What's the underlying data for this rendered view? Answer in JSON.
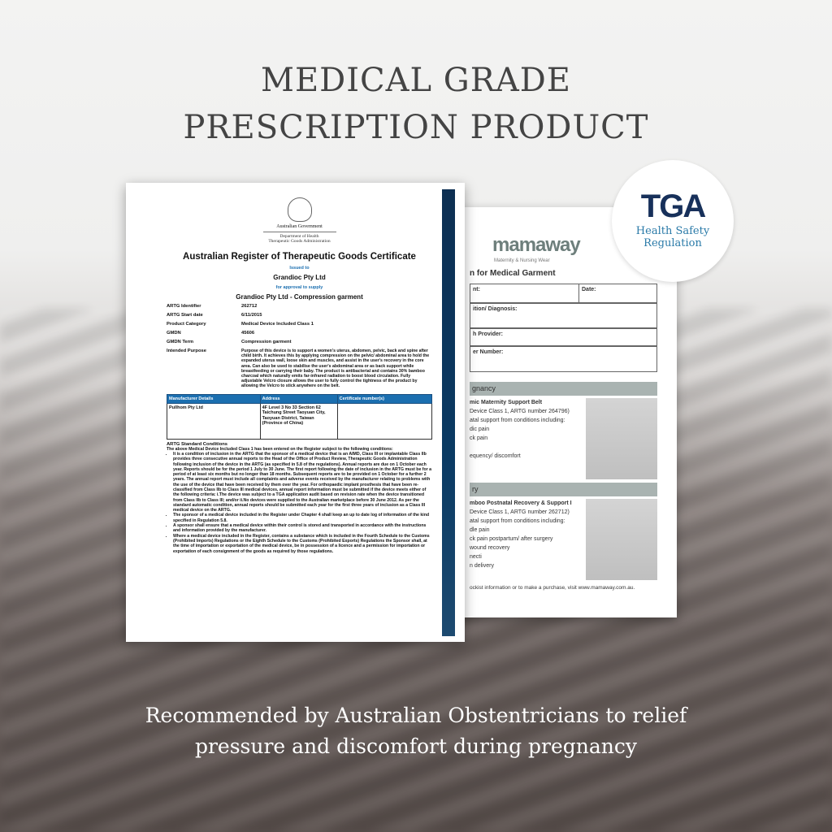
{
  "headline": {
    "line1": "MEDICAL GRADE",
    "line2": "PRESCRIPTION PRODUCT"
  },
  "tagline": {
    "line1": "Recommended by Australian Obstentricians to relief",
    "line2": "pressure and discomfort during pregnancy"
  },
  "tga_badge": {
    "logo": "TGA",
    "line1": "Health Safety",
    "line2": "Regulation"
  },
  "certificate": {
    "gov": "Australian Government",
    "dept": "Department of Health",
    "agency": "Therapeutic Goods Administration",
    "title": "Australian Register of Therapeutic Goods Certificate",
    "issued_to_label": "Issued to",
    "issued_to": "Grandioc Pty Ltd",
    "approval_label": "for approval to supply",
    "product": "Grandioc Pty Ltd - Compression garment",
    "fields": [
      {
        "k": "ARTG Identifier",
        "v": "262712"
      },
      {
        "k": "ARTG Start date",
        "v": "6/11/2015"
      },
      {
        "k": "Product Category",
        "v": "Medical Device Included Class 1"
      },
      {
        "k": "GMDN",
        "v": "45606"
      },
      {
        "k": "GMDN Term",
        "v": "Compression garment"
      },
      {
        "k": "Intended Purpose",
        "v": "Purpose of this device is to support a women's uterus, abdomen, pelvic, back and spine after child birth. It achieves this by applying compression on the pelvic/ abdominal area to hold the expanded uterus wall, loose skin and muscles, and assist in the user's recovery in the core area. Can also be used to stabilise the user's abdominal area or as back support while breastfeeding or carrying their baby. The product is antibacterial and contains 30% bamboo charcoal which naturally emits far-infrared radiation to boost blood circulation. Fully adjustable Velcro closure allows the user to fully control the tightness of the product by allowing the Velcro to stick anywhere on the belt."
      }
    ],
    "table": {
      "headers": [
        "Manufacturer Details",
        "Address",
        "Certificate number(s)"
      ],
      "manufacturer": "Pullhom Pty Ltd",
      "address": "4F Level 3 No 33 Section 62 Taichung Street Taoyuan City, Taoyuan District, Taiwan (Province of China)",
      "cert_no": ""
    },
    "conditions_title": "ARTG Standard Conditions",
    "conditions_intro": "The above Medical Device Included Class 1 has been entered on the Register subject to the following conditions:",
    "conditions": [
      "It is a condition of inclusion in the ARTG that the sponsor of a medical device that is an AIMD, Class III or implantable Class IIb provides three consecutive annual reports to the Head of the Office of Product Review, Therapeutic Goods Administration following inclusion of the device in the ARTG (as specified in 5.8 of the regulations). Annual reports are due on 1 October each year. Reports should be for the period 1 July to 30 June. The first report following the date of inclusion in the ARTG must be for a period of at least six months but no longer than 18 months. Subsequent reports are to be provided on 1 October for a further 2 years. The annual report must include all complaints and adverse events received by the manufacturer relating to problems with the use of the device that have been received by them over the year. For orthopaedic implant prosthesis that have been re-classified from Class IIb to Class III medical devices, annual report information must be submitted if the device meets either of the following criteria: i.The device was subject to a TGA application audit based on revision rate when the device transitioned from Class IIb to Class III; and/or ii.No devices were supplied to the Australian marketplace before 30 June 2012. As per the standard automatic condition, annual reports should be submitted each year for the first three years of inclusion as a Class III medical device on the ARTG.",
      "The sponsor of a medical device included in the Register under Chapter 4 shall keep an up to date log of information of the kind specified in Regulation 5.8.",
      "A sponsor shall ensure that a medical device within their control is stored and transported in accordance with the instructions and information provided by the manufacturer.",
      "Where a medical device included in the Register, contains a substance which is included in the Fourth Schedule to the Customs (Prohibited Imports) Regulations or the Eighth Schedule to the Customs (Prohibited Exports) Regulations the Sponsor shall, at the time of importation or exportation of the medical device, be in possession of a licence and a permission for importation or exportation of each consignment of the goods as required by those regulations."
    ]
  },
  "form": {
    "logo": "mamaway",
    "logo_sub": "Maternity & Nursing Wear",
    "title": "n for Medical Garment",
    "fields": {
      "patient": "nt:",
      "date": "Date:",
      "diagnosis": "ition/ Diagnosis:",
      "provider": "h Provider:",
      "number": "er Number:"
    },
    "section1": "gnancy",
    "p1_name": "mic Maternity Support Belt",
    "p1_class": "Device Class 1, ARTG number 264796)",
    "p1_lines": [
      "atal support from conditions including:",
      "dic pain",
      "ck pain",
      "",
      "equency/ discomfort"
    ],
    "section2": "ry",
    "p2_name": "mboo Postnatal Recovery & Support I",
    "p2_class": "Device Class 1, ARTG number 262712)",
    "p2_lines": [
      "atal support from conditions including:",
      "dle pain",
      "ck pain postpartum/ after surgery",
      "wound recovery",
      "necti",
      "n delivery"
    ],
    "footer": "ockist information or to make a purchase, visit www.mamaway.com.au."
  }
}
